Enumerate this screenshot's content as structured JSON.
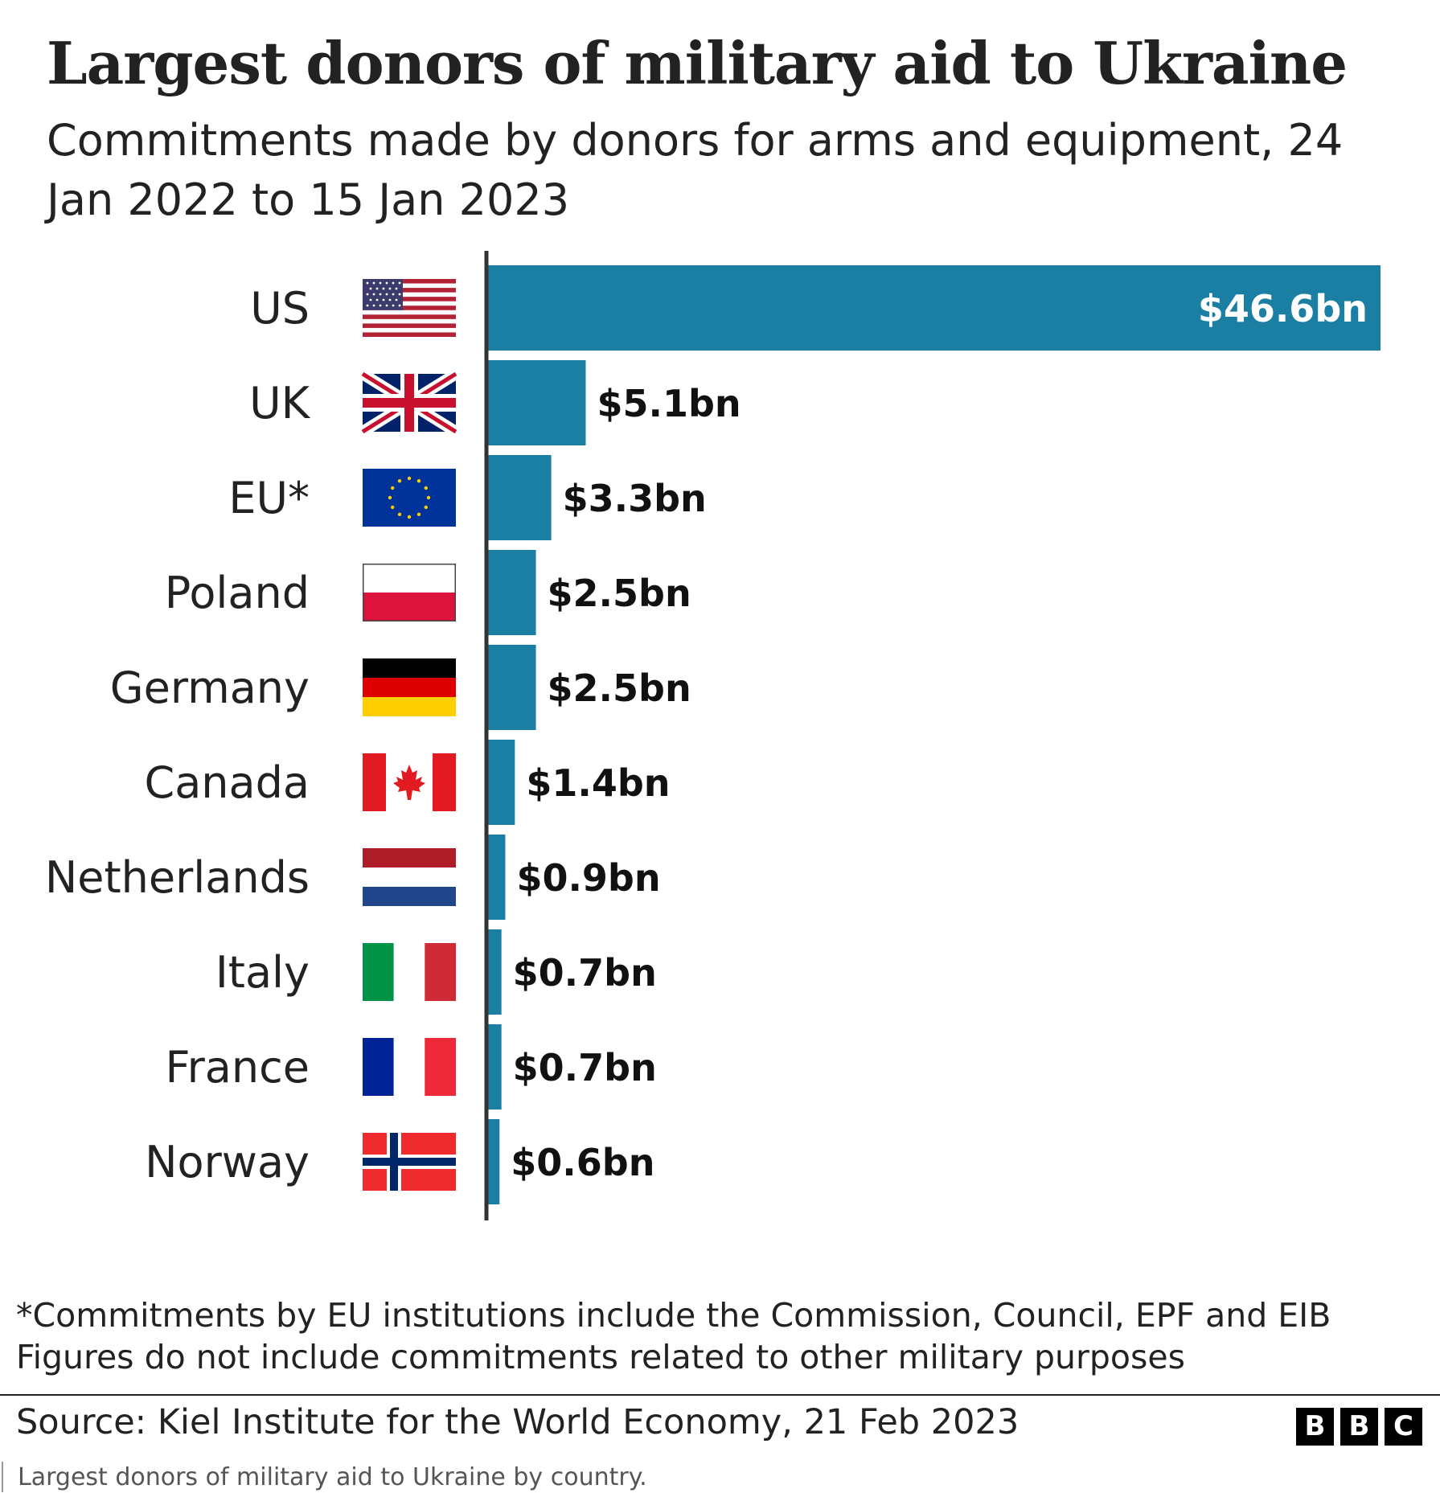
{
  "header": {
    "title": "Largest donors of military aid to Ukraine",
    "subtitle": "Commitments made by donors for arms and equipment, 24 Jan 2022 to 15 Jan 2023"
  },
  "chart_data": {
    "type": "bar",
    "orientation": "horizontal",
    "categories": [
      "US",
      "UK",
      "EU*",
      "Poland",
      "Germany",
      "Canada",
      "Netherlands",
      "Italy",
      "France",
      "Norway"
    ],
    "values": [
      46.6,
      5.1,
      3.3,
      2.5,
      2.5,
      1.4,
      0.9,
      0.7,
      0.7,
      0.6
    ],
    "value_labels": [
      "$46.6bn",
      "$5.1bn",
      "$3.3bn",
      "$2.5bn",
      "$2.5bn",
      "$1.4bn",
      "$0.9bn",
      "$0.7bn",
      "$0.7bn",
      "$0.6bn"
    ],
    "flags": [
      "us-flag",
      "uk-flag",
      "eu-flag",
      "poland-flag",
      "germany-flag",
      "canada-flag",
      "netherlands-flag",
      "italy-flag",
      "france-flag",
      "norway-flag"
    ],
    "xlim": [
      0,
      46.6
    ],
    "bar_color": "#1a7fa3",
    "grid": false
  },
  "footer": {
    "note1": "*Commitments by EU institutions include the Commission, Council, EPF and EIB",
    "note2": "Figures do not include commitments related to other military purposes",
    "source": "Source: Kiel Institute for the World Economy, 21 Feb 2023",
    "logo_letters": [
      "B",
      "B",
      "C"
    ]
  },
  "caption": "Largest donors of military aid to Ukraine by country."
}
